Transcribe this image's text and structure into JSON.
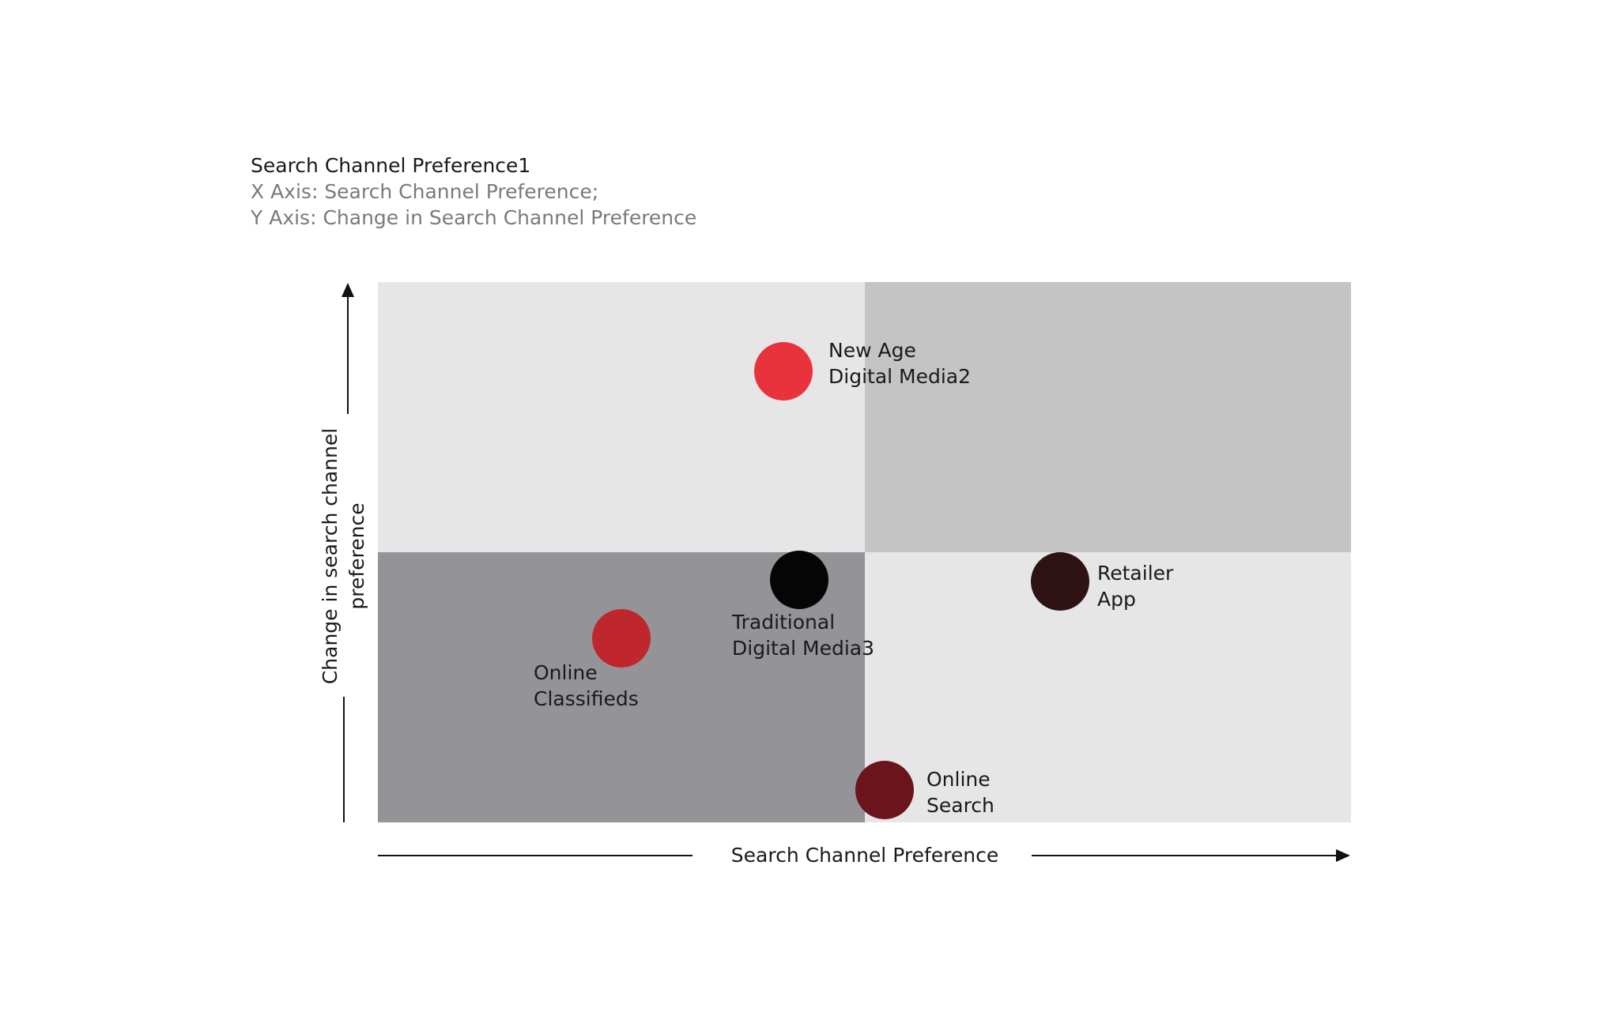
{
  "header": {
    "title": "Search Channel Preference1",
    "subtitle_lines": [
      "X Axis: Search Channel Preference;",
      "Y Axis: Change in Search Channel Preference"
    ]
  },
  "axes": {
    "x_label": "Search Channel Preference",
    "y_label_lines": [
      "Change in search channel",
      "preference"
    ]
  },
  "nodes": [
    {
      "label": [
        "New Age",
        "Digital Media2"
      ],
      "color": "#e8323c"
    },
    {
      "label": [
        "Traditional",
        "Digital Media3"
      ],
      "color": "#050505"
    },
    {
      "label": [
        "Online",
        "Classifieds"
      ],
      "color": "#c0272d"
    },
    {
      "label": [
        "Retailer",
        "App"
      ],
      "color": "#2e1214"
    },
    {
      "label": [
        "Online",
        "Search"
      ],
      "color": "#6b141b"
    }
  ]
}
